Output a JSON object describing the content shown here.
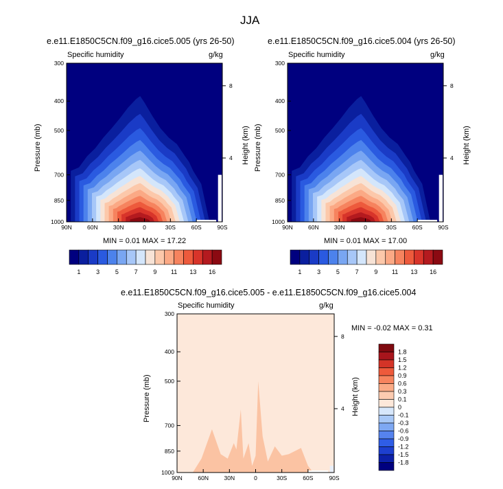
{
  "figure": {
    "title": "JJA"
  },
  "colors": {
    "background": "#ffffff",
    "frame": "#000000",
    "seq_levels": [
      "#00007f",
      "#0a1f9e",
      "#1a3bc6",
      "#2a5ae0",
      "#4c82ec",
      "#79a6f2",
      "#a7c7f8",
      "#d4e6fb",
      "#f7e3d6",
      "#fcc8aa",
      "#fba985",
      "#f6835e",
      "#ed5a3c",
      "#d8342a",
      "#b41a1f",
      "#8b0a12"
    ],
    "diff_levels": [
      "#00007f",
      "#0c20a8",
      "#1d3fcf",
      "#2f5de6",
      "#5683ee",
      "#7ea8f3",
      "#a8c8f7",
      "#d7e7fb",
      "#fde8da",
      "#fccbb0",
      "#fbab86",
      "#f7845e",
      "#ee5a3b",
      "#d43427",
      "#a8151c",
      "#7f0a10"
    ]
  },
  "panels": [
    {
      "title": "e.e11.E1850C5CN.f09_g16.cice5.005 (yrs 26-50)",
      "variable": "Specific humidity",
      "units": "g/kg",
      "ylabel": "Pressure (mb)",
      "ylabel_right": "Height (km)",
      "stats": "MIN =   0.01   MAX =  17.22"
    },
    {
      "title": "e.e11.E1850C5CN.f09_g16.cice5.004 (yrs 26-50)",
      "variable": "Specific humidity",
      "units": "g/kg",
      "ylabel": "Pressure (mb)",
      "ylabel_right": "Height (km)",
      "stats": "MIN =   0.01   MAX =  17.00"
    },
    {
      "title": "e.e11.E1850C5CN.f09_g16.cice5.005 - e.e11.E1850C5CN.f09_g16.cice5.004",
      "variable": "Specific humidity",
      "units": "g/kg",
      "ylabel": "Pressure (mb)",
      "ylabel_right": "Height (km)",
      "stats": "MIN =  -0.02   MAX =   0.31"
    }
  ],
  "chart_data": [
    {
      "type": "heatmap",
      "title": "e.e11.E1850C5CN.f09_g16.cice5.005 (yrs 26-50)",
      "variable": "Specific humidity",
      "units": "g/kg",
      "x_ticks": [
        "90N",
        "60N",
        "30N",
        "0",
        "30S",
        "60S",
        "90S"
      ],
      "x_values": [
        90,
        60,
        30,
        0,
        -30,
        -60,
        -90
      ],
      "y_ticks": [
        300,
        400,
        500,
        700,
        850,
        1000
      ],
      "ylim": [
        1000,
        300
      ],
      "y_right_ticks": [
        4,
        8
      ],
      "min": 0.01,
      "max": 17.22,
      "contour_profile": {
        "lat": [
          90,
          80,
          70,
          60,
          50,
          40,
          30,
          20,
          10,
          5,
          0,
          -10,
          -20,
          -30,
          -40,
          -50,
          -55,
          -60,
          -70,
          -80,
          -90
        ],
        "top_pressure_of_0.5_level": [
          640,
          620,
          560,
          520,
          470,
          430,
          390,
          350,
          320,
          310,
          330,
          380,
          430,
          470,
          500,
          560,
          590,
          640,
          720,
          1000,
          1000
        ]
      }
    },
    {
      "type": "heatmap",
      "title": "e.e11.E1850C5CN.f09_g16.cice5.004 (yrs 26-50)",
      "variable": "Specific humidity",
      "units": "g/kg",
      "x_ticks": [
        "90N",
        "60N",
        "30N",
        "0",
        "30S",
        "60S",
        "90S"
      ],
      "x_values": [
        90,
        60,
        30,
        0,
        -30,
        -60,
        -90
      ],
      "y_ticks": [
        300,
        400,
        500,
        700,
        850,
        1000
      ],
      "ylim": [
        1000,
        300
      ],
      "y_right_ticks": [
        4,
        8
      ],
      "min": 0.01,
      "max": 17.0,
      "contour_profile": {
        "lat": [
          90,
          80,
          70,
          60,
          50,
          40,
          30,
          20,
          10,
          5,
          0,
          -10,
          -20,
          -30,
          -40,
          -50,
          -55,
          -60,
          -70,
          -80,
          -90
        ],
        "top_pressure_of_0.5_level": [
          640,
          620,
          560,
          520,
          470,
          430,
          390,
          350,
          320,
          310,
          330,
          380,
          430,
          470,
          500,
          560,
          590,
          640,
          720,
          1000,
          1000
        ]
      }
    },
    {
      "type": "heatmap",
      "title": "e.e11.E1850C5CN.f09_g16.cice5.005 - e.e11.E1850C5CN.f09_g16.cice5.004",
      "variable": "Specific humidity",
      "units": "g/kg",
      "x_ticks": [
        "90N",
        "60N",
        "30N",
        "0",
        "30S",
        "60S",
        "90S"
      ],
      "x_values": [
        90,
        60,
        30,
        0,
        -30,
        -60,
        -90
      ],
      "y_ticks": [
        300,
        400,
        500,
        700,
        850,
        1000
      ],
      "ylim": [
        1000,
        300
      ],
      "y_right_ticks": [
        4,
        8
      ],
      "min": -0.02,
      "max": 0.31,
      "background_level": "0 to 0.1",
      "feature_level": "0.1 to 0.3"
    }
  ],
  "colorbars": {
    "sequential": {
      "labels": [
        "1",
        "3",
        "5",
        "7",
        "9",
        "11",
        "13",
        "16"
      ],
      "levels": [
        0.5,
        1,
        2,
        3,
        4,
        5,
        6,
        7,
        8,
        9,
        10,
        11,
        12,
        13,
        14,
        16
      ]
    },
    "difference": {
      "labels": [
        "1.8",
        "1.5",
        "1.2",
        "0.9",
        "0.6",
        "0.3",
        "0.1",
        "0",
        "-0.1",
        "-0.3",
        "-0.6",
        "-0.9",
        "-1.2",
        "-1.5",
        "-1.8"
      ]
    }
  }
}
